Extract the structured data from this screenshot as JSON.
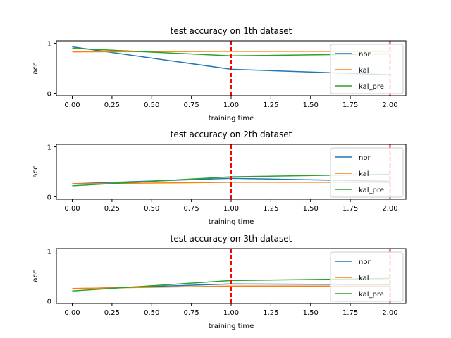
{
  "figure": {
    "background": "#ffffff"
  },
  "chart_data": [
    {
      "type": "line",
      "title": "test accuracy on 1th dataset",
      "xlabel": "training time",
      "ylabel": "acc",
      "xlim": [
        -0.1,
        2.1
      ],
      "ylim": [
        -0.05,
        1.05
      ],
      "xticks": [
        "0.00",
        "0.25",
        "0.50",
        "0.75",
        "1.00",
        "1.25",
        "1.50",
        "1.75",
        "2.00"
      ],
      "xtick_values": [
        0,
        0.25,
        0.5,
        0.75,
        1.0,
        1.25,
        1.5,
        1.75,
        2.0
      ],
      "yticks": [
        "0",
        "1"
      ],
      "ytick_values": [
        0,
        1
      ],
      "grid": false,
      "legend_position": "top-right",
      "vlines": [
        {
          "x": 1.0,
          "color": "#ff0000",
          "style": "dashed"
        },
        {
          "x": 2.0,
          "color": "#ff0000",
          "style": "dashed"
        }
      ],
      "series": [
        {
          "name": "nor",
          "color": "#1f77b4",
          "x": [
            0,
            1,
            2
          ],
          "y": [
            0.93,
            0.48,
            0.37
          ]
        },
        {
          "name": "kal",
          "color": "#ff7f0e",
          "x": [
            0,
            1,
            2
          ],
          "y": [
            0.83,
            0.84,
            0.84
          ]
        },
        {
          "name": "kal_pre",
          "color": "#2ca02c",
          "x": [
            0,
            1,
            2
          ],
          "y": [
            0.9,
            0.75,
            0.79
          ]
        }
      ]
    },
    {
      "type": "line",
      "title": "test accuracy on 2th dataset",
      "xlabel": "training time",
      "ylabel": "acc",
      "xlim": [
        -0.1,
        2.1
      ],
      "ylim": [
        -0.05,
        1.05
      ],
      "xticks": [
        "0.00",
        "0.25",
        "0.50",
        "0.75",
        "1.00",
        "1.25",
        "1.50",
        "1.75",
        "2.00"
      ],
      "xtick_values": [
        0,
        0.25,
        0.5,
        0.75,
        1.0,
        1.25,
        1.5,
        1.75,
        2.0
      ],
      "yticks": [
        "0",
        "1"
      ],
      "ytick_values": [
        0,
        1
      ],
      "grid": false,
      "legend_position": "top-right",
      "vlines": [
        {
          "x": 1.0,
          "color": "#ff0000",
          "style": "dashed"
        },
        {
          "x": 2.0,
          "color": "#ff0000",
          "style": "dashed"
        }
      ],
      "series": [
        {
          "name": "nor",
          "color": "#1f77b4",
          "x": [
            0,
            1,
            2
          ],
          "y": [
            0.26,
            0.37,
            0.31
          ]
        },
        {
          "name": "kal",
          "color": "#ff7f0e",
          "x": [
            0,
            1,
            2
          ],
          "y": [
            0.26,
            0.29,
            0.29
          ]
        },
        {
          "name": "kal_pre",
          "color": "#2ca02c",
          "x": [
            0,
            1,
            2
          ],
          "y": [
            0.22,
            0.4,
            0.45
          ]
        }
      ]
    },
    {
      "type": "line",
      "title": "test accuracy on 3th dataset",
      "xlabel": "training time",
      "ylabel": "acc",
      "xlim": [
        -0.1,
        2.1
      ],
      "ylim": [
        -0.05,
        1.05
      ],
      "xticks": [
        "0.00",
        "0.25",
        "0.50",
        "0.75",
        "1.00",
        "1.25",
        "1.50",
        "1.75",
        "2.00"
      ],
      "xtick_values": [
        0,
        0.25,
        0.5,
        0.75,
        1.0,
        1.25,
        1.5,
        1.75,
        2.0
      ],
      "yticks": [
        "0",
        "1"
      ],
      "ytick_values": [
        0,
        1
      ],
      "grid": false,
      "legend_position": "top-right",
      "vlines": [
        {
          "x": 1.0,
          "color": "#ff0000",
          "style": "dashed"
        },
        {
          "x": 2.0,
          "color": "#ff0000",
          "style": "dashed"
        }
      ],
      "series": [
        {
          "name": "nor",
          "color": "#1f77b4",
          "x": [
            0,
            1,
            2
          ],
          "y": [
            0.24,
            0.34,
            0.33
          ]
        },
        {
          "name": "kal",
          "color": "#ff7f0e",
          "x": [
            0,
            1,
            2
          ],
          "y": [
            0.25,
            0.3,
            0.3
          ]
        },
        {
          "name": "kal_pre",
          "color": "#2ca02c",
          "x": [
            0,
            1,
            2
          ],
          "y": [
            0.2,
            0.41,
            0.45
          ]
        }
      ]
    }
  ]
}
